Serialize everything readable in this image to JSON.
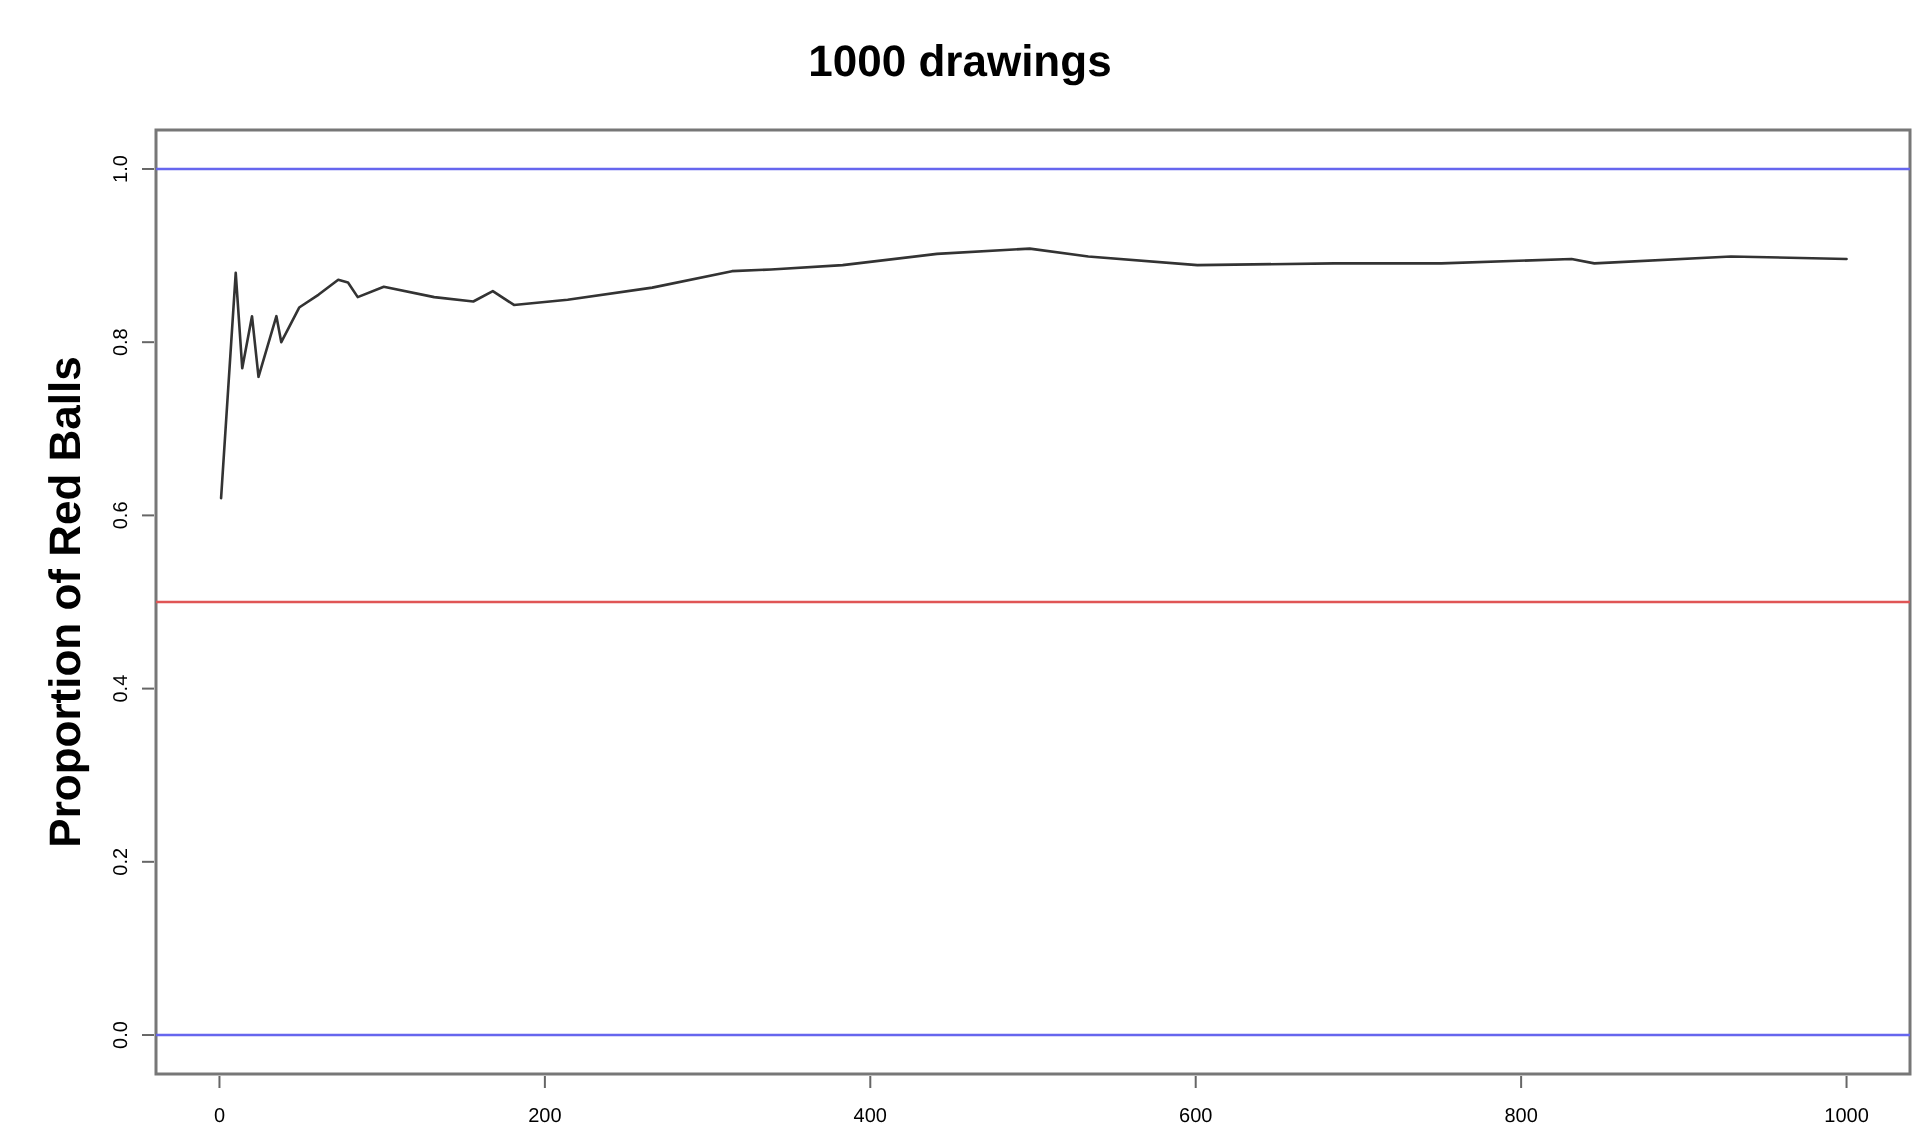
{
  "chart_data": {
    "type": "line",
    "title": "1000 drawings",
    "ylabel": "Proportion of Red Balls",
    "x": [
      1,
      10,
      14,
      20,
      24,
      35,
      38,
      49,
      61,
      73,
      79,
      85,
      101,
      132,
      156,
      168,
      181,
      214,
      266,
      315,
      339,
      383,
      441,
      498,
      534,
      601,
      685,
      751,
      831,
      845,
      929,
      1000
    ],
    "series": [
      {
        "color": "#333333",
        "values": [
          0.62,
          0.88,
          0.77,
          0.83,
          0.76,
          0.83,
          0.8,
          0.84,
          0.855,
          0.872,
          0.869,
          0.852,
          0.864,
          0.852,
          0.847,
          0.859,
          0.843,
          0.849,
          0.863,
          0.882,
          0.884,
          0.889,
          0.902,
          0.908,
          0.899,
          0.889,
          0.891,
          0.891,
          0.896,
          0.891,
          0.899,
          0.896
        ]
      }
    ],
    "xlim": [
      -39,
      1039
    ],
    "ylim": [
      -0.045,
      1.045
    ],
    "xticks": [
      0,
      200,
      400,
      600,
      800,
      1000
    ],
    "yticks": [
      {
        "value": 0,
        "label": "0.0"
      },
      {
        "value": 0.2,
        "label": "0.2"
      },
      {
        "value": 0.4,
        "label": "0.4"
      },
      {
        "value": 0.6,
        "label": "0.6"
      },
      {
        "value": 0.8,
        "label": "0.8"
      },
      {
        "value": 1,
        "label": "1.0"
      }
    ],
    "ref_lines": [
      {
        "axis": "y",
        "value": 1,
        "color": "#6666ee"
      },
      {
        "axis": "y",
        "value": 0.5,
        "color": "#e05555"
      },
      {
        "axis": "y",
        "value": 0,
        "color": "#6666ee"
      }
    ],
    "grid": false,
    "marker": "none",
    "line_style": "solid"
  }
}
